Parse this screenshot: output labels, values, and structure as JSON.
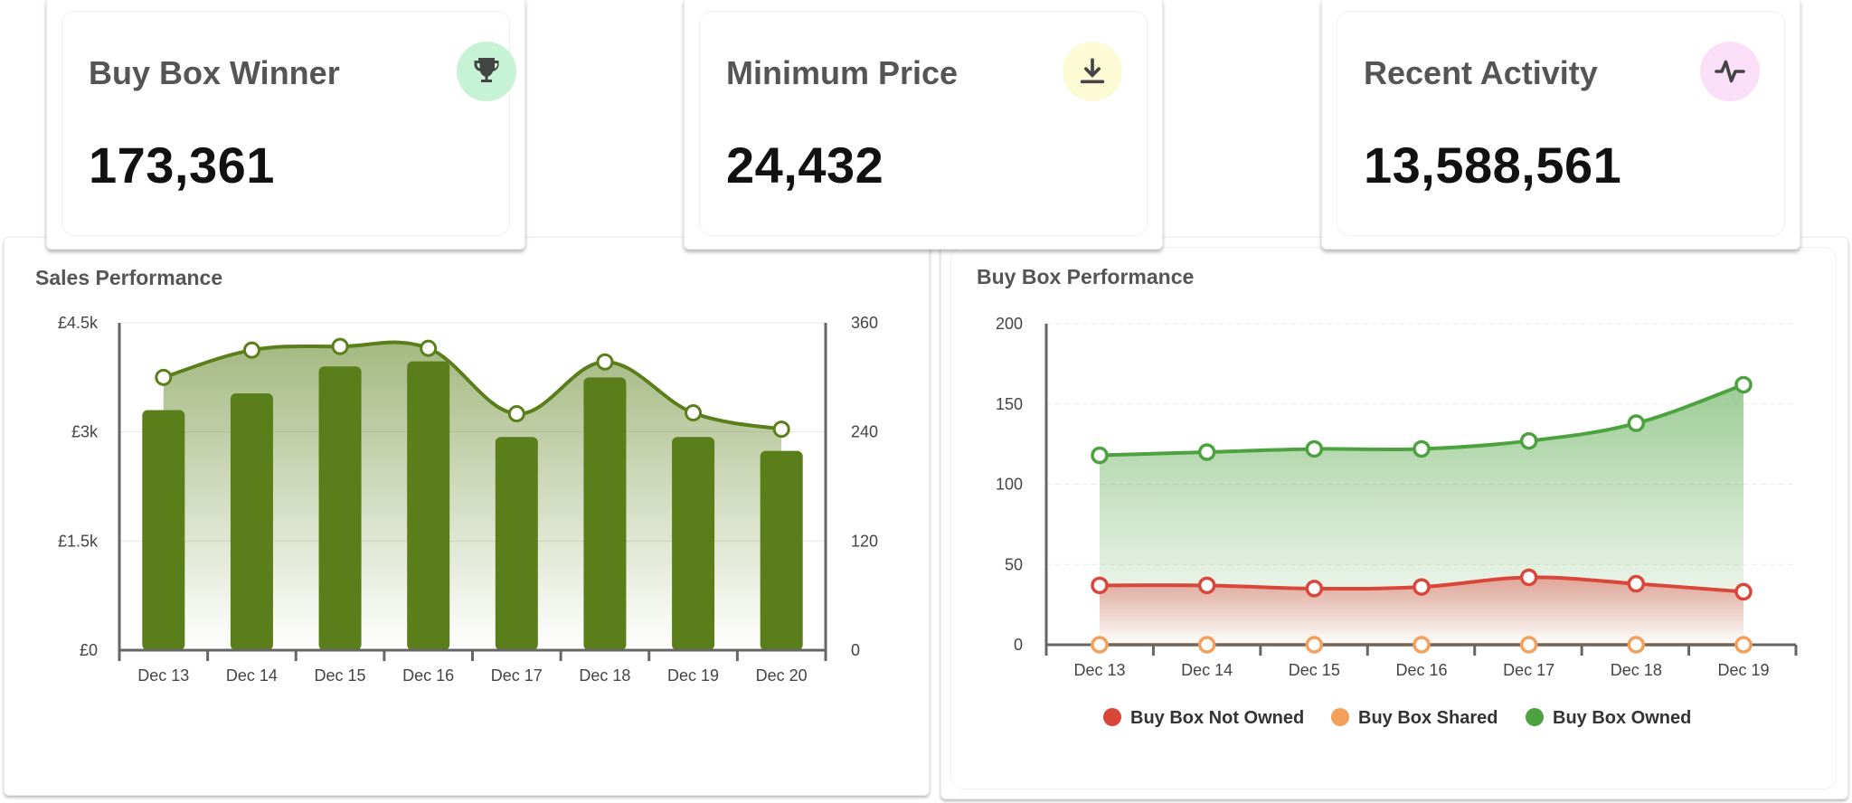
{
  "kpis": [
    {
      "title": "Buy Box Winner",
      "value": "173,361",
      "icon": "trophy-icon",
      "icon_bg": "#c6f2d6",
      "icon_color": "#444444"
    },
    {
      "title": "Minimum Price",
      "value": "24,432",
      "icon": "download-icon",
      "icon_bg": "#fdfbd6",
      "icon_color": "#444444"
    },
    {
      "title": "Recent Activity",
      "value": "13,588,561",
      "icon": "activity-icon",
      "icon_bg": "#fbdff8",
      "icon_color": "#444444"
    }
  ],
  "sales_chart": {
    "title": "Sales Performance",
    "bar_color": "#5a7f1a",
    "line_color": "#5a7f1a",
    "chart_data": {
      "type": "bar",
      "categories": [
        "Dec 13",
        "Dec 14",
        "Dec 15",
        "Dec 16",
        "Dec 17",
        "Dec 18",
        "Dec 19",
        "Dec 20"
      ],
      "y_left": {
        "ticks": [
          0,
          1500,
          3000,
          4500
        ],
        "tick_labels": [
          "£0",
          "£1.5k",
          "£3k",
          "£4.5k"
        ],
        "ylim": [
          0,
          4500
        ]
      },
      "y_right": {
        "ticks": [
          0,
          120,
          240,
          360
        ],
        "tick_labels": [
          "0",
          "120",
          "240",
          "360"
        ],
        "ylim": [
          0,
          360
        ]
      },
      "series": [
        {
          "kind": "bar",
          "axis": "left",
          "values": [
            3300,
            3530,
            3900,
            3970,
            2930,
            3750,
            2930,
            2740
          ]
        },
        {
          "kind": "line",
          "axis": "right",
          "values": [
            300,
            330,
            334,
            332,
            260,
            317,
            261,
            243
          ]
        }
      ]
    }
  },
  "buybox_chart": {
    "title": "Buy Box Performance",
    "chart_data": {
      "type": "line",
      "categories": [
        "Dec 13",
        "Dec 14",
        "Dec 15",
        "Dec 16",
        "Dec 17",
        "Dec 18",
        "Dec 19"
      ],
      "y": {
        "ticks": [
          0,
          50,
          100,
          150,
          200
        ],
        "tick_labels": [
          "0",
          "50",
          "100",
          "150",
          "200"
        ],
        "ylim": [
          0,
          200
        ]
      },
      "series": [
        {
          "name": "Buy Box Not Owned",
          "color": "#d9473b",
          "values": [
            37,
            37,
            35,
            36,
            42,
            38,
            33
          ]
        },
        {
          "name": "Buy Box Shared",
          "color": "#f5a05a",
          "values": [
            0,
            0,
            0,
            0,
            0,
            0,
            0
          ]
        },
        {
          "name": "Buy Box Owned",
          "color": "#4ca23e",
          "values": [
            118,
            120,
            122,
            122,
            127,
            138,
            162
          ]
        }
      ],
      "legend": "bottom"
    }
  }
}
